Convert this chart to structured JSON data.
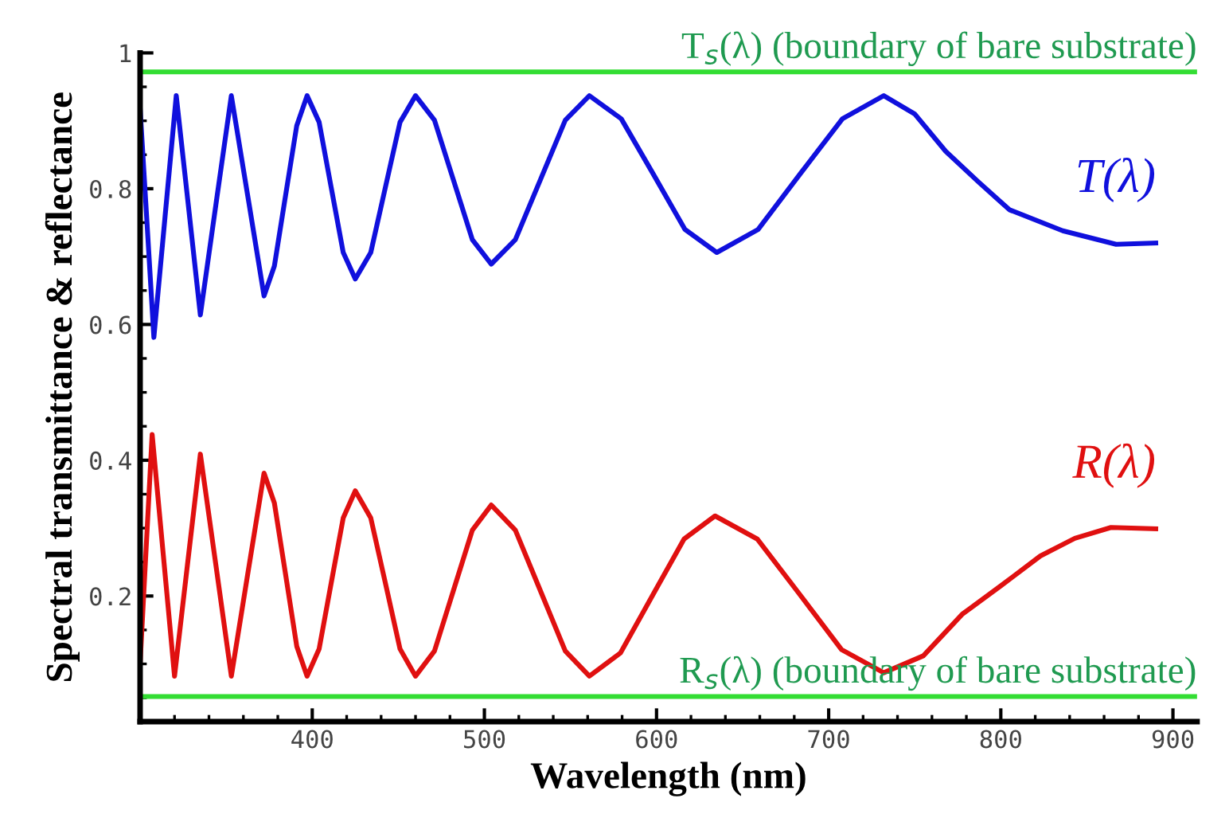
{
  "chart_data": {
    "type": "line",
    "xlabel": "Wavelength (nm)",
    "ylabel": "Spectral transmittance & reflectance",
    "xlim": [
      300,
      914
    ],
    "ylim": [
      0.015,
      1.0
    ],
    "xticks": [
      400,
      500,
      600,
      700,
      800,
      900
    ],
    "yticks": [
      0.2,
      0.4,
      0.6,
      0.8,
      1
    ],
    "grid": false,
    "legend": false,
    "line_style": "solid",
    "marker": "none",
    "series": [
      {
        "name": "T(λ)",
        "color": "#1010dd",
        "x": [
          300,
          304,
          308,
          314.5,
          321,
          328,
          335,
          344,
          353,
          362.5,
          372,
          378,
          384.5,
          391,
          397,
          404,
          411,
          418,
          425,
          434,
          442.5,
          451,
          460,
          471,
          482,
          493,
          504,
          518,
          532.5,
          547,
          561,
          579.5,
          598,
          616.5,
          635,
          659,
          683.5,
          708,
          732,
          750,
          768,
          787,
          805,
          836,
          867,
          890
        ],
        "values": [
          0.918,
          0.75,
          0.581,
          0.759,
          0.937,
          0.776,
          0.614,
          0.776,
          0.937,
          0.79,
          0.642,
          0.686,
          0.79,
          0.893,
          0.937,
          0.898,
          0.802,
          0.706,
          0.667,
          0.706,
          0.802,
          0.898,
          0.937,
          0.901,
          0.813,
          0.725,
          0.689,
          0.725,
          0.813,
          0.901,
          0.937,
          0.903,
          0.822,
          0.74,
          0.706,
          0.74,
          0.822,
          0.903,
          0.937,
          0.91,
          0.855,
          0.81,
          0.769,
          0.738,
          0.718,
          0.72
        ]
      },
      {
        "name": "R(λ)",
        "color": "#e01010",
        "x": [
          300,
          303.5,
          307,
          313.5,
          320,
          327.5,
          335,
          344,
          353,
          362.5,
          372,
          378,
          384.5,
          391,
          397,
          404,
          411,
          418,
          425,
          434,
          442.5,
          451,
          460,
          471,
          482,
          493,
          504,
          518,
          532.5,
          547,
          561,
          579,
          597.5,
          616,
          634,
          658.5,
          683,
          707.5,
          732,
          755,
          777.5,
          800,
          823,
          843,
          864,
          890
        ],
        "values": [
          0.101,
          0.27,
          0.438,
          0.26,
          0.082,
          0.246,
          0.409,
          0.246,
          0.082,
          0.232,
          0.381,
          0.337,
          0.232,
          0.126,
          0.082,
          0.122,
          0.219,
          0.315,
          0.355,
          0.315,
          0.219,
          0.122,
          0.082,
          0.119,
          0.208,
          0.297,
          0.334,
          0.297,
          0.208,
          0.119,
          0.082,
          0.116,
          0.2,
          0.284,
          0.318,
          0.284,
          0.203,
          0.121,
          0.087,
          0.112,
          0.173,
          0.215,
          0.259,
          0.285,
          0.301,
          0.299
        ]
      }
    ],
    "ref_lines": [
      {
        "axis": "y",
        "value": 0.972,
        "label": "T$_{s}$(λ) (boundary of bare substrate)",
        "color": "#33dd33"
      },
      {
        "axis": "y",
        "value": 0.052,
        "label": "R$_{s}$(λ) (boundary of bare substrate)",
        "color": "#33dd33"
      }
    ]
  }
}
